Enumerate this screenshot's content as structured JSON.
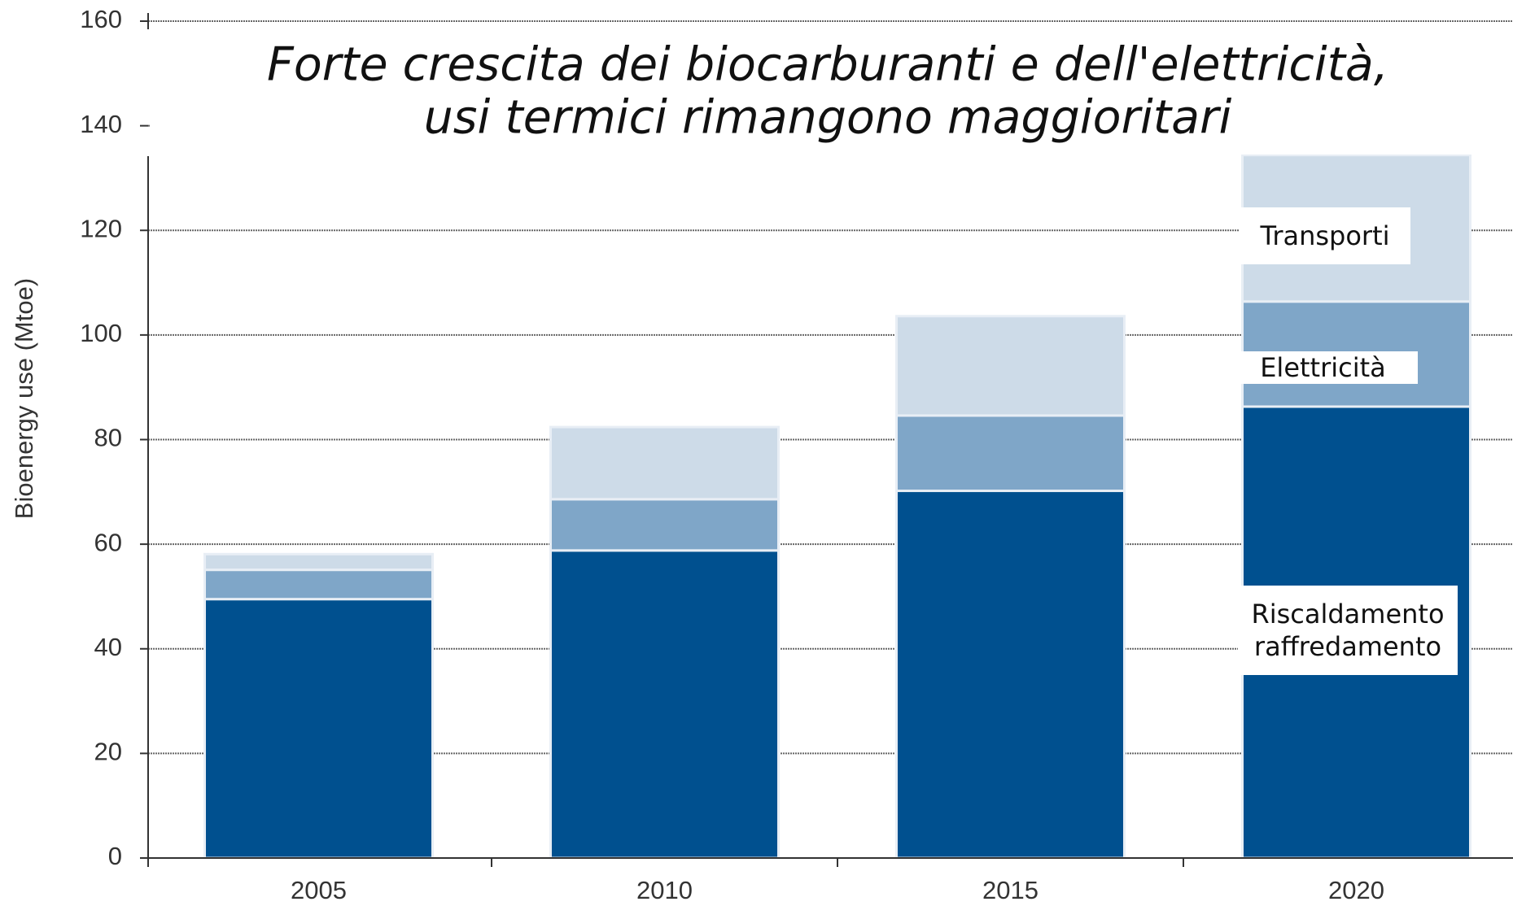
{
  "chart_data": {
    "type": "stacked_bar",
    "title": [
      "Forte crescita dei biocarburanti e dell'elettricità,",
      "usi termici rimangono maggioritari"
    ],
    "y_label": "Bioenergy use (Mtoe)",
    "categories": [
      "2005",
      "2010",
      "2015",
      "2020"
    ],
    "series": [
      {
        "name": "Riscaldamento raffredamento",
        "color": "#00508f",
        "values": [
          49.5,
          58.8,
          70.2,
          86.3
        ]
      },
      {
        "name": "Elettricità",
        "color": "#7fa6c8",
        "values": [
          5.6,
          9.8,
          14.4,
          20.1
        ]
      },
      {
        "name": "Transporti",
        "color": "#cddbe8",
        "values": [
          3,
          13.8,
          19,
          28
        ]
      }
    ],
    "ylim": [
      0,
      160
    ],
    "yticks": [
      0,
      20,
      40,
      60,
      80,
      100,
      120,
      140,
      160
    ],
    "grid": true
  }
}
